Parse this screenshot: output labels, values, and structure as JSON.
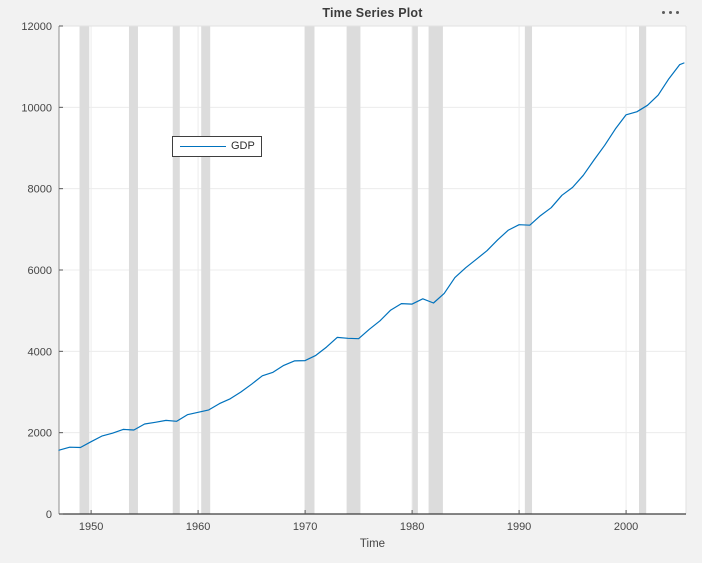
{
  "figure": {
    "background_color": "#f2f2f2",
    "options_menu": {
      "icon": "ellipsis",
      "dot_color": "#5c5c5c"
    }
  },
  "chart_data": {
    "type": "line",
    "title": "Time Series Plot",
    "xlabel": "Time",
    "ylabel": "",
    "xlim": [
      1947,
      2005.6
    ],
    "ylim": [
      0,
      12000
    ],
    "x_ticks": [
      1950,
      1960,
      1970,
      1980,
      1990,
      2000
    ],
    "x_tick_labels": [
      "1950",
      "1960",
      "1970",
      "1980",
      "1990",
      "2000"
    ],
    "y_ticks": [
      0,
      2000,
      4000,
      6000,
      8000,
      10000,
      12000
    ],
    "y_tick_labels": [
      "0",
      "2000",
      "4000",
      "6000",
      "8000",
      "10000",
      "12000"
    ],
    "grid": true,
    "grid_color": "#ececec",
    "plot_background": "#ffffff",
    "axis_color_bottom": "#3d3d3d",
    "axis_color_left": "#8f8f8f",
    "box_color_light": "#e2e2e2",
    "tick_color": "#5a5a5a",
    "legend": {
      "position": "upper-left-inside",
      "entries": [
        "GDP"
      ]
    },
    "series": [
      {
        "name": "GDP",
        "color": "#0072BD",
        "x": [
          1947,
          1948,
          1949,
          1950,
          1951,
          1952,
          1953,
          1954,
          1955,
          1956,
          1957,
          1958,
          1959,
          1960,
          1961,
          1962,
          1963,
          1964,
          1965,
          1966,
          1967,
          1968,
          1969,
          1970,
          1971,
          1972,
          1973,
          1974,
          1975,
          1976,
          1977,
          1978,
          1979,
          1980,
          1981,
          1982,
          1983,
          1984,
          1985,
          1986,
          1987,
          1988,
          1989,
          1990,
          1991,
          1992,
          1993,
          1994,
          1995,
          1996,
          1997,
          1998,
          1999,
          2000,
          2001,
          2002,
          2003,
          2004,
          2005,
          2005.4
        ],
        "y": [
          1570,
          1643,
          1635,
          1777,
          1915,
          1988,
          2080,
          2065,
          2213,
          2256,
          2301,
          2279,
          2441,
          2502,
          2560,
          2715,
          2834,
          2999,
          3191,
          3399,
          3485,
          3653,
          3765,
          3772,
          3899,
          4105,
          4342,
          4320,
          4311,
          4541,
          4751,
          5015,
          5173,
          5162,
          5292,
          5189,
          5424,
          5814,
          6054,
          6264,
          6475,
          6743,
          6981,
          7113,
          7101,
          7337,
          7533,
          7836,
          8032,
          8329,
          8704,
          9067,
          9470,
          9817,
          9891,
          10049,
          10301,
          10704,
          11049,
          11090
        ]
      }
    ],
    "recession_bands": [
      [
        1948.92,
        1949.83
      ],
      [
        1953.54,
        1954.38
      ],
      [
        1957.63,
        1958.29
      ],
      [
        1960.29,
        1961.13
      ],
      [
        1969.96,
        1970.88
      ],
      [
        1973.88,
        1975.17
      ],
      [
        1980.04,
        1980.54
      ],
      [
        1981.54,
        1982.88
      ],
      [
        1990.54,
        1991.21
      ],
      [
        2001.21,
        2001.88
      ]
    ],
    "band_color": "#dcdcdc"
  }
}
